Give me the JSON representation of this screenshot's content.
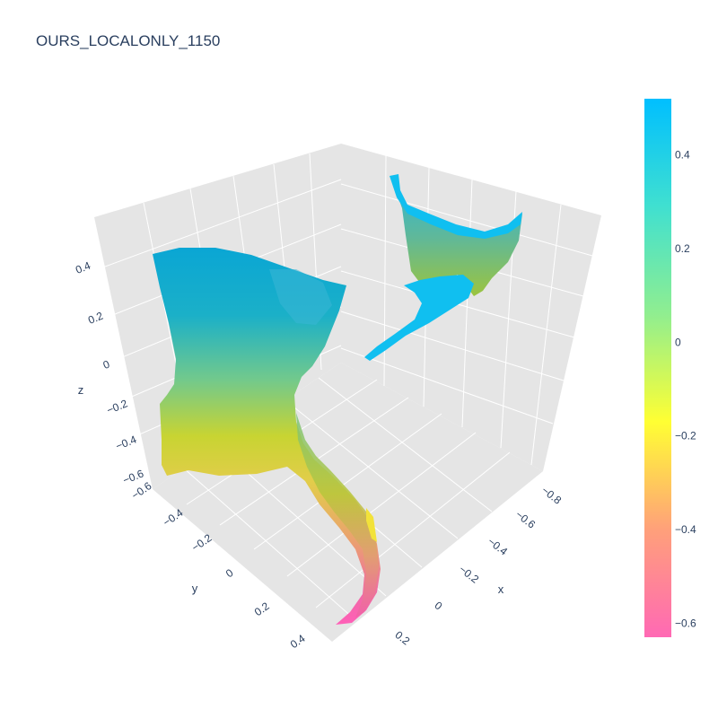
{
  "chart_data": {
    "type": "surface",
    "title": "OURS_LOCALONLY_1150",
    "x_axis": {
      "label": "x",
      "ticks": [
        "−0.8",
        "−0.6",
        "−0.4",
        "−0.2",
        "0",
        "0.2"
      ]
    },
    "y_axis": {
      "label": "y",
      "ticks": [
        "−0.6",
        "−0.4",
        "−0.2",
        "0",
        "0.2",
        "0.4"
      ]
    },
    "z_axis": {
      "label": "z",
      "ticks": [
        "0.4",
        "0.2",
        "0",
        "−0.2",
        "−0.4",
        "−0.6"
      ]
    },
    "colorbar": {
      "ticks": [
        "0.4",
        "0.2",
        "0",
        "−0.2",
        "−0.4",
        "−0.6"
      ],
      "range": [
        -0.63,
        0.52
      ],
      "colorscale": [
        "#ff69b4",
        "#ffa07a",
        "#ffff33",
        "#90ee90",
        "#40e0d0",
        "#00bfff"
      ]
    },
    "grid": true,
    "colorbar_position": "right"
  }
}
